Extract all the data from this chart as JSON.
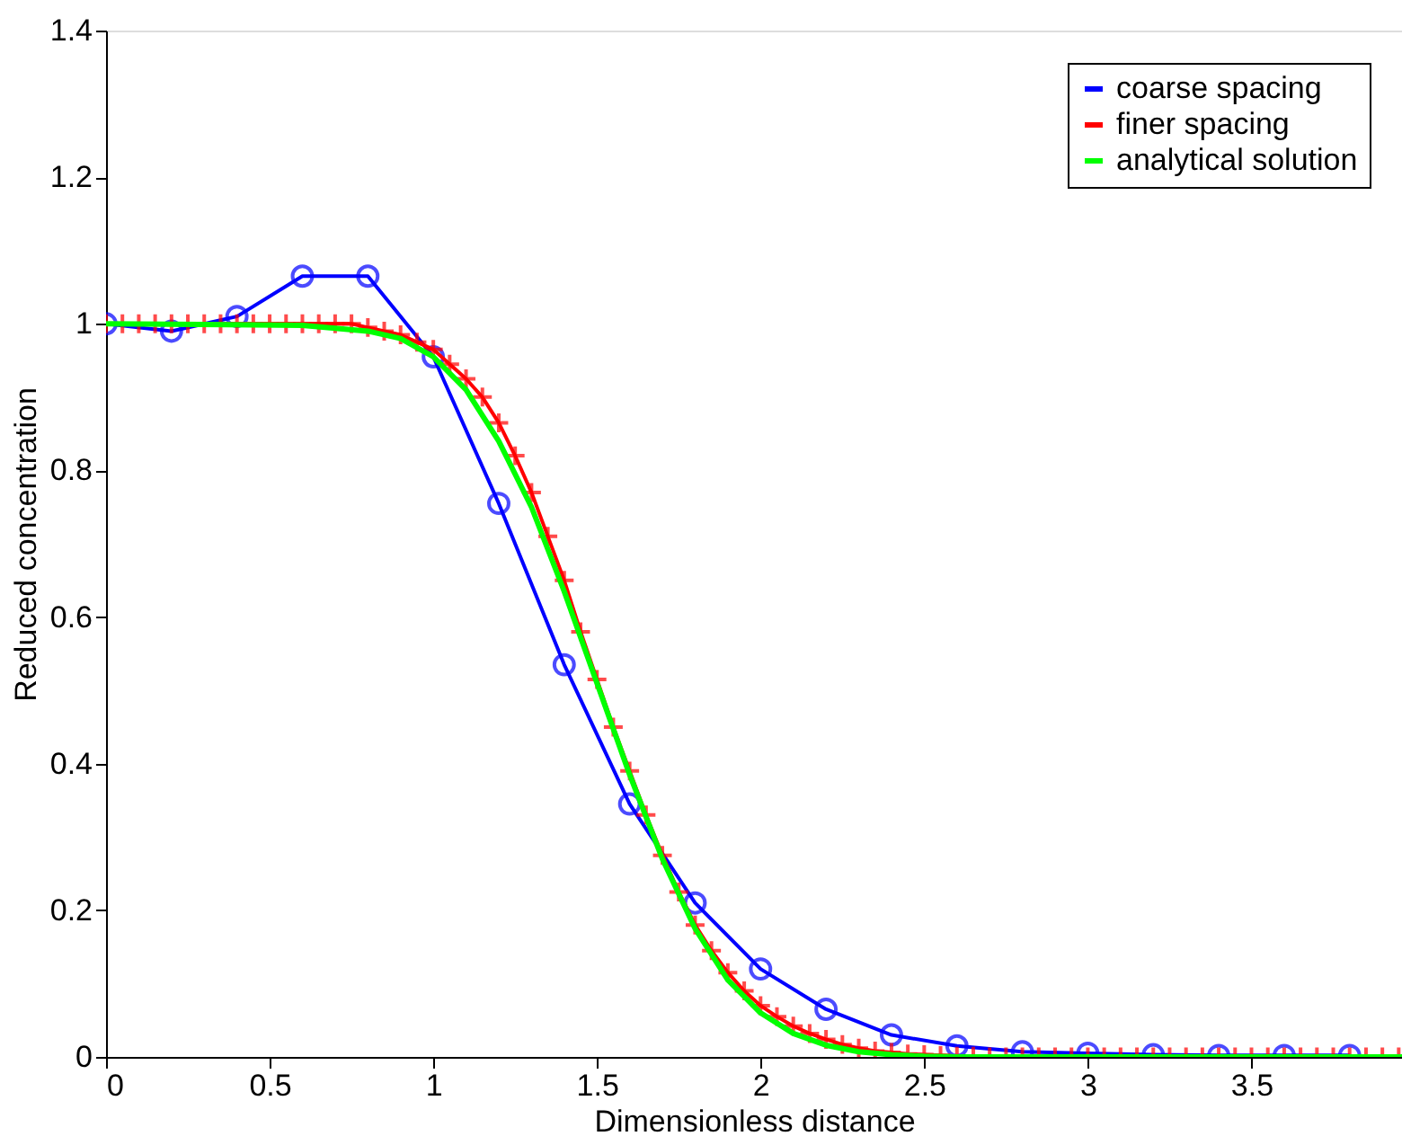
{
  "chart_data": {
    "type": "line",
    "xlabel": "Dimensionless distance",
    "ylabel": "Reduced concentration",
    "xlim": [
      0,
      3.96
    ],
    "ylim": [
      0,
      1.4
    ],
    "xticks": [
      0,
      0.5,
      1,
      1.5,
      2,
      2.5,
      3,
      3.5
    ],
    "yticks": [
      0,
      0.2,
      0.4,
      0.6,
      0.8,
      1,
      1.2,
      1.4
    ],
    "grid": false,
    "legend": "top right",
    "series": [
      {
        "name": "coarse spacing",
        "color": "#0000ff",
        "marker": "circle",
        "x": [
          0,
          0.2,
          0.4,
          0.6,
          0.8,
          1.0,
          1.2,
          1.4,
          1.6,
          1.8,
          2.0,
          2.2,
          2.4,
          2.6,
          2.8,
          3.0,
          3.2,
          3.4,
          3.6,
          3.8
        ],
        "values": [
          1.0,
          0.99,
          1.01,
          1.065,
          1.065,
          0.955,
          0.755,
          0.535,
          0.345,
          0.21,
          0.12,
          0.065,
          0.03,
          0.015,
          0.007,
          0.005,
          0.003,
          0.002,
          0.002,
          0.002
        ]
      },
      {
        "name": "finer spacing",
        "color": "#ff0000",
        "marker": "cross",
        "x": [
          0,
          0.05,
          0.1,
          0.15,
          0.2,
          0.25,
          0.3,
          0.35,
          0.4,
          0.45,
          0.5,
          0.55,
          0.6,
          0.65,
          0.7,
          0.75,
          0.8,
          0.85,
          0.9,
          0.95,
          1.0,
          1.05,
          1.1,
          1.15,
          1.2,
          1.25,
          1.3,
          1.35,
          1.4,
          1.45,
          1.5,
          1.55,
          1.6,
          1.65,
          1.7,
          1.75,
          1.8,
          1.85,
          1.9,
          1.95,
          2.0,
          2.05,
          2.1,
          2.15,
          2.2,
          2.25,
          2.3,
          2.35,
          2.4,
          2.45,
          2.5,
          2.55,
          2.6,
          2.65,
          2.7,
          2.75,
          2.8,
          2.85,
          2.9,
          2.95,
          3.0,
          3.05,
          3.1,
          3.15,
          3.2,
          3.25,
          3.3,
          3.35,
          3.4,
          3.45,
          3.5,
          3.55,
          3.6,
          3.65,
          3.7,
          3.75,
          3.8,
          3.85,
          3.9,
          3.95
        ],
        "values": [
          1,
          1,
          1,
          1,
          1,
          1,
          1,
          1,
          1,
          1,
          1,
          1,
          1,
          1,
          1,
          1,
          0.995,
          0.99,
          0.985,
          0.975,
          0.965,
          0.945,
          0.925,
          0.9,
          0.865,
          0.82,
          0.77,
          0.71,
          0.65,
          0.58,
          0.515,
          0.45,
          0.39,
          0.33,
          0.275,
          0.225,
          0.18,
          0.145,
          0.115,
          0.09,
          0.07,
          0.055,
          0.042,
          0.032,
          0.024,
          0.017,
          0.012,
          0.008,
          0.006,
          0.004,
          0.003,
          0.002,
          0.001,
          0.001,
          0,
          0,
          0,
          0,
          0,
          0,
          0,
          0,
          0,
          0,
          0,
          0,
          0,
          0,
          0,
          0,
          0,
          0,
          0,
          0,
          0,
          0,
          0,
          0,
          0,
          0
        ]
      },
      {
        "name": "analytical solution",
        "color": "#00ff00",
        "marker": "none",
        "x": [
          0,
          0.6,
          0.8,
          0.9,
          1.0,
          1.1,
          1.2,
          1.3,
          1.4,
          1.5,
          1.6,
          1.7,
          1.8,
          1.9,
          2.0,
          2.1,
          2.2,
          2.3,
          2.4,
          2.5,
          2.6,
          3.96
        ],
        "values": [
          1,
          0.998,
          0.99,
          0.98,
          0.955,
          0.91,
          0.84,
          0.75,
          0.635,
          0.51,
          0.385,
          0.27,
          0.175,
          0.105,
          0.06,
          0.032,
          0.016,
          0.007,
          0.003,
          0.001,
          0,
          0
        ]
      }
    ]
  }
}
